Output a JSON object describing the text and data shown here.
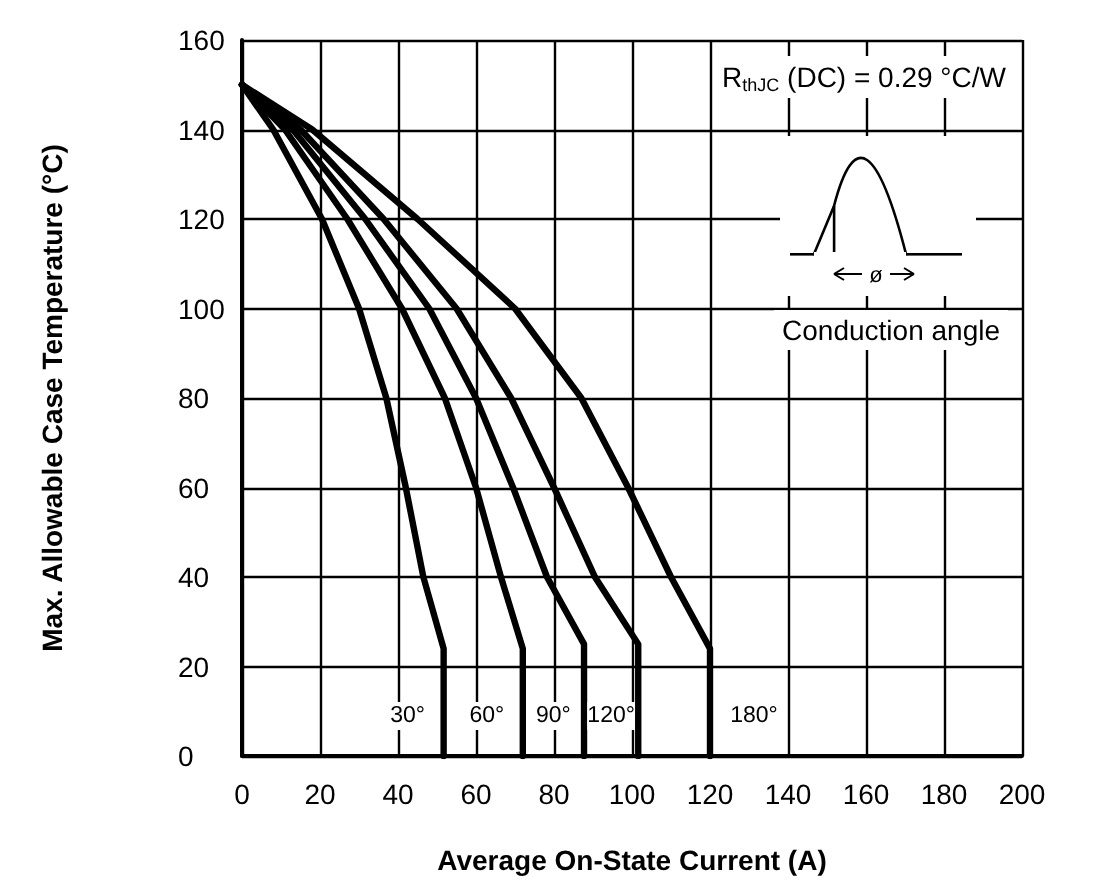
{
  "chart_data": {
    "type": "line",
    "xlabel": "Average On-State Current (A)",
    "ylabel": "Max. Allowable Case Temperature (°C)",
    "xlim": [
      0,
      200
    ],
    "xticks": [
      0,
      20,
      40,
      60,
      80,
      100,
      120,
      140,
      160,
      180,
      200
    ],
    "ylim": [
      0,
      160
    ],
    "yticks": [
      0,
      20,
      40,
      60,
      80,
      100,
      120,
      140,
      160
    ],
    "grid": true,
    "legend": false,
    "marker": "none",
    "line_style": "solid",
    "annotations": [
      "R$_{thJC}$ (DC) = 0.29 °C/W",
      "Conduction angle",
      "ø"
    ],
    "series": [
      {
        "name": "30°",
        "color": "#000000",
        "x": [
          0,
          8,
          20.5,
          30,
          37,
          42,
          46.5,
          51.7,
          51.7
        ],
        "values": [
          150,
          140,
          120,
          100,
          80,
          60,
          40,
          24,
          0
        ]
      },
      {
        "name": "60°",
        "color": "#000000",
        "x": [
          0,
          11,
          27,
          41,
          52,
          60,
          66.4,
          72,
          72
        ],
        "values": [
          150,
          140,
          120,
          100,
          80,
          60,
          40,
          24,
          0
        ]
      },
      {
        "name": "90°",
        "color": "#000000",
        "x": [
          0,
          13,
          31.6,
          48,
          60,
          69.5,
          78.2,
          87.7,
          87.7
        ],
        "values": [
          150,
          140,
          120,
          100,
          80,
          60,
          40,
          25,
          0
        ]
      },
      {
        "name": "120°",
        "color": "#000000",
        "x": [
          0,
          15,
          36.3,
          55,
          69,
          80,
          90.5,
          101.6,
          101.6
        ],
        "values": [
          150,
          140,
          120,
          100,
          80,
          60,
          40,
          25,
          0
        ]
      },
      {
        "name": "180°",
        "color": "#000000",
        "x": [
          0,
          18,
          45,
          70,
          87,
          99,
          110,
          120,
          120
        ],
        "values": [
          150,
          140,
          120,
          100,
          80,
          60,
          40,
          24,
          0
        ]
      }
    ]
  }
}
